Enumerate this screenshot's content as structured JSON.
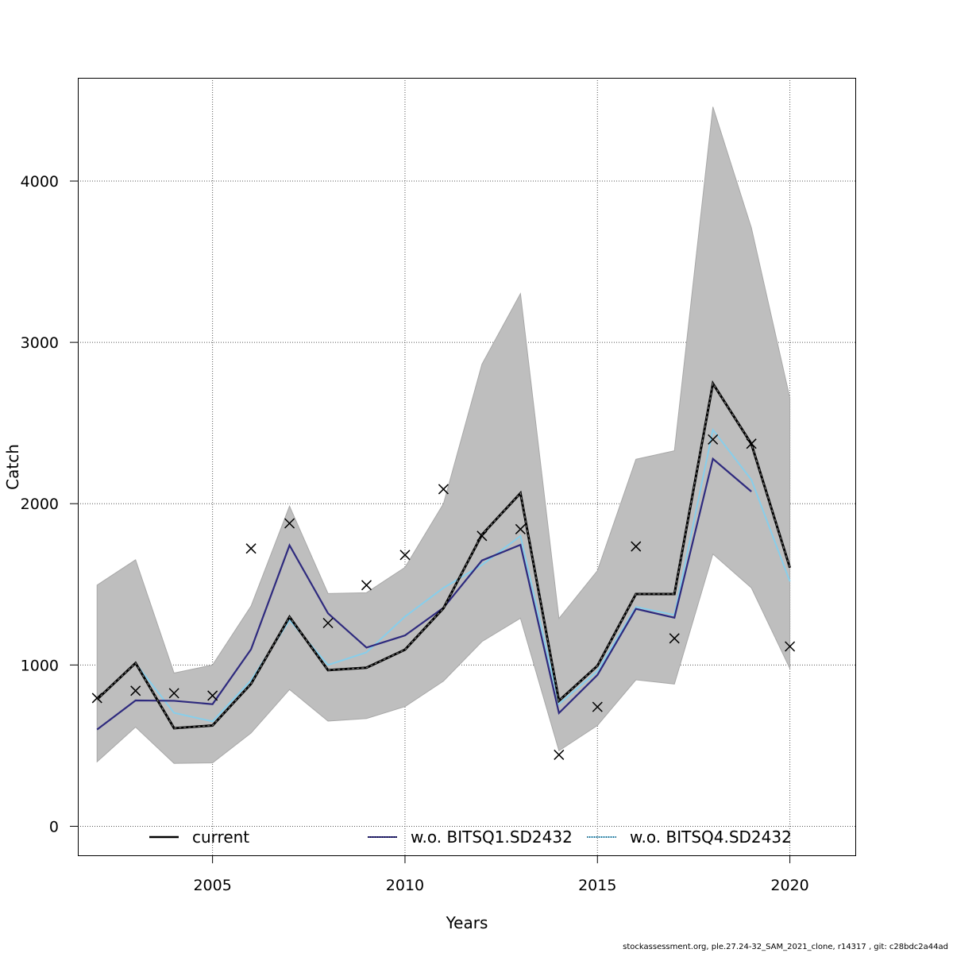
{
  "chart_data": {
    "type": "line",
    "title": "",
    "xlabel": "Years",
    "ylabel": "Catch",
    "xlim": [
      2001.5,
      2021.7
    ],
    "ylim": [
      -180,
      4640
    ],
    "xticks": [
      2005,
      2010,
      2015,
      2020
    ],
    "yticks": [
      0,
      1000,
      2000,
      3000,
      4000
    ],
    "grid": true,
    "legend_position": "bottom",
    "x": [
      2002,
      2003,
      2004,
      2005,
      2006,
      2007,
      2008,
      2009,
      2010,
      2011,
      2012,
      2013,
      2014,
      2015,
      2016,
      2017,
      2018,
      2019,
      2020
    ],
    "band": {
      "color": "#bebebe",
      "lower": [
        400,
        615,
        390,
        393,
        578,
        848,
        652,
        668,
        742,
        900,
        1145,
        1290,
        468,
        625,
        908,
        882,
        1688,
        1478,
        978
      ],
      "upper": [
        1495,
        1652,
        950,
        1000,
        1365,
        1985,
        1443,
        1448,
        1605,
        2000,
        2865,
        3302,
        1288,
        1585,
        2275,
        2328,
        4460,
        3710,
        2655
      ]
    },
    "series": [
      {
        "name": "current",
        "color": "#000000",
        "values": [
          787,
          1012,
          608,
          625,
          883,
          1298,
          968,
          983,
          1095,
          1352,
          1808,
          2065,
          778,
          995,
          1440,
          1440,
          2745,
          2370,
          1603
        ]
      },
      {
        "name": "w.o. BITSQ1.SD2432",
        "color": "#2e2a7e",
        "values": [
          600,
          780,
          778,
          757,
          1097,
          1742,
          1320,
          1108,
          1183,
          1355,
          1648,
          1745,
          702,
          938,
          1348,
          1293,
          2278,
          2075,
          null
        ]
      },
      {
        "name": "w.o. BITSQ4.SD2432",
        "color": "#87ceeb",
        "values": [
          790,
          1010,
          703,
          650,
          905,
          1278,
          1000,
          1078,
          1300,
          1478,
          1620,
          1800,
          758,
          962,
          1360,
          1310,
          2458,
          2148,
          1518
        ]
      }
    ],
    "observations": {
      "marker": "x",
      "x": [
        2002,
        2003,
        2004,
        2005,
        2006,
        2007,
        2008,
        2009,
        2010,
        2011,
        2012,
        2013,
        2014,
        2015,
        2016,
        2017,
        2018,
        2019,
        2020
      ],
      "y": [
        795,
        840,
        825,
        810,
        1722,
        1878,
        1260,
        1495,
        1682,
        2090,
        1800,
        1842,
        443,
        740,
        1735,
        1165,
        2398,
        2372,
        1115
      ]
    }
  },
  "footer": "stockassessment.org, ple.27.24-32_SAM_2021_clone, r14317 , git: c28bdc2a44ad"
}
